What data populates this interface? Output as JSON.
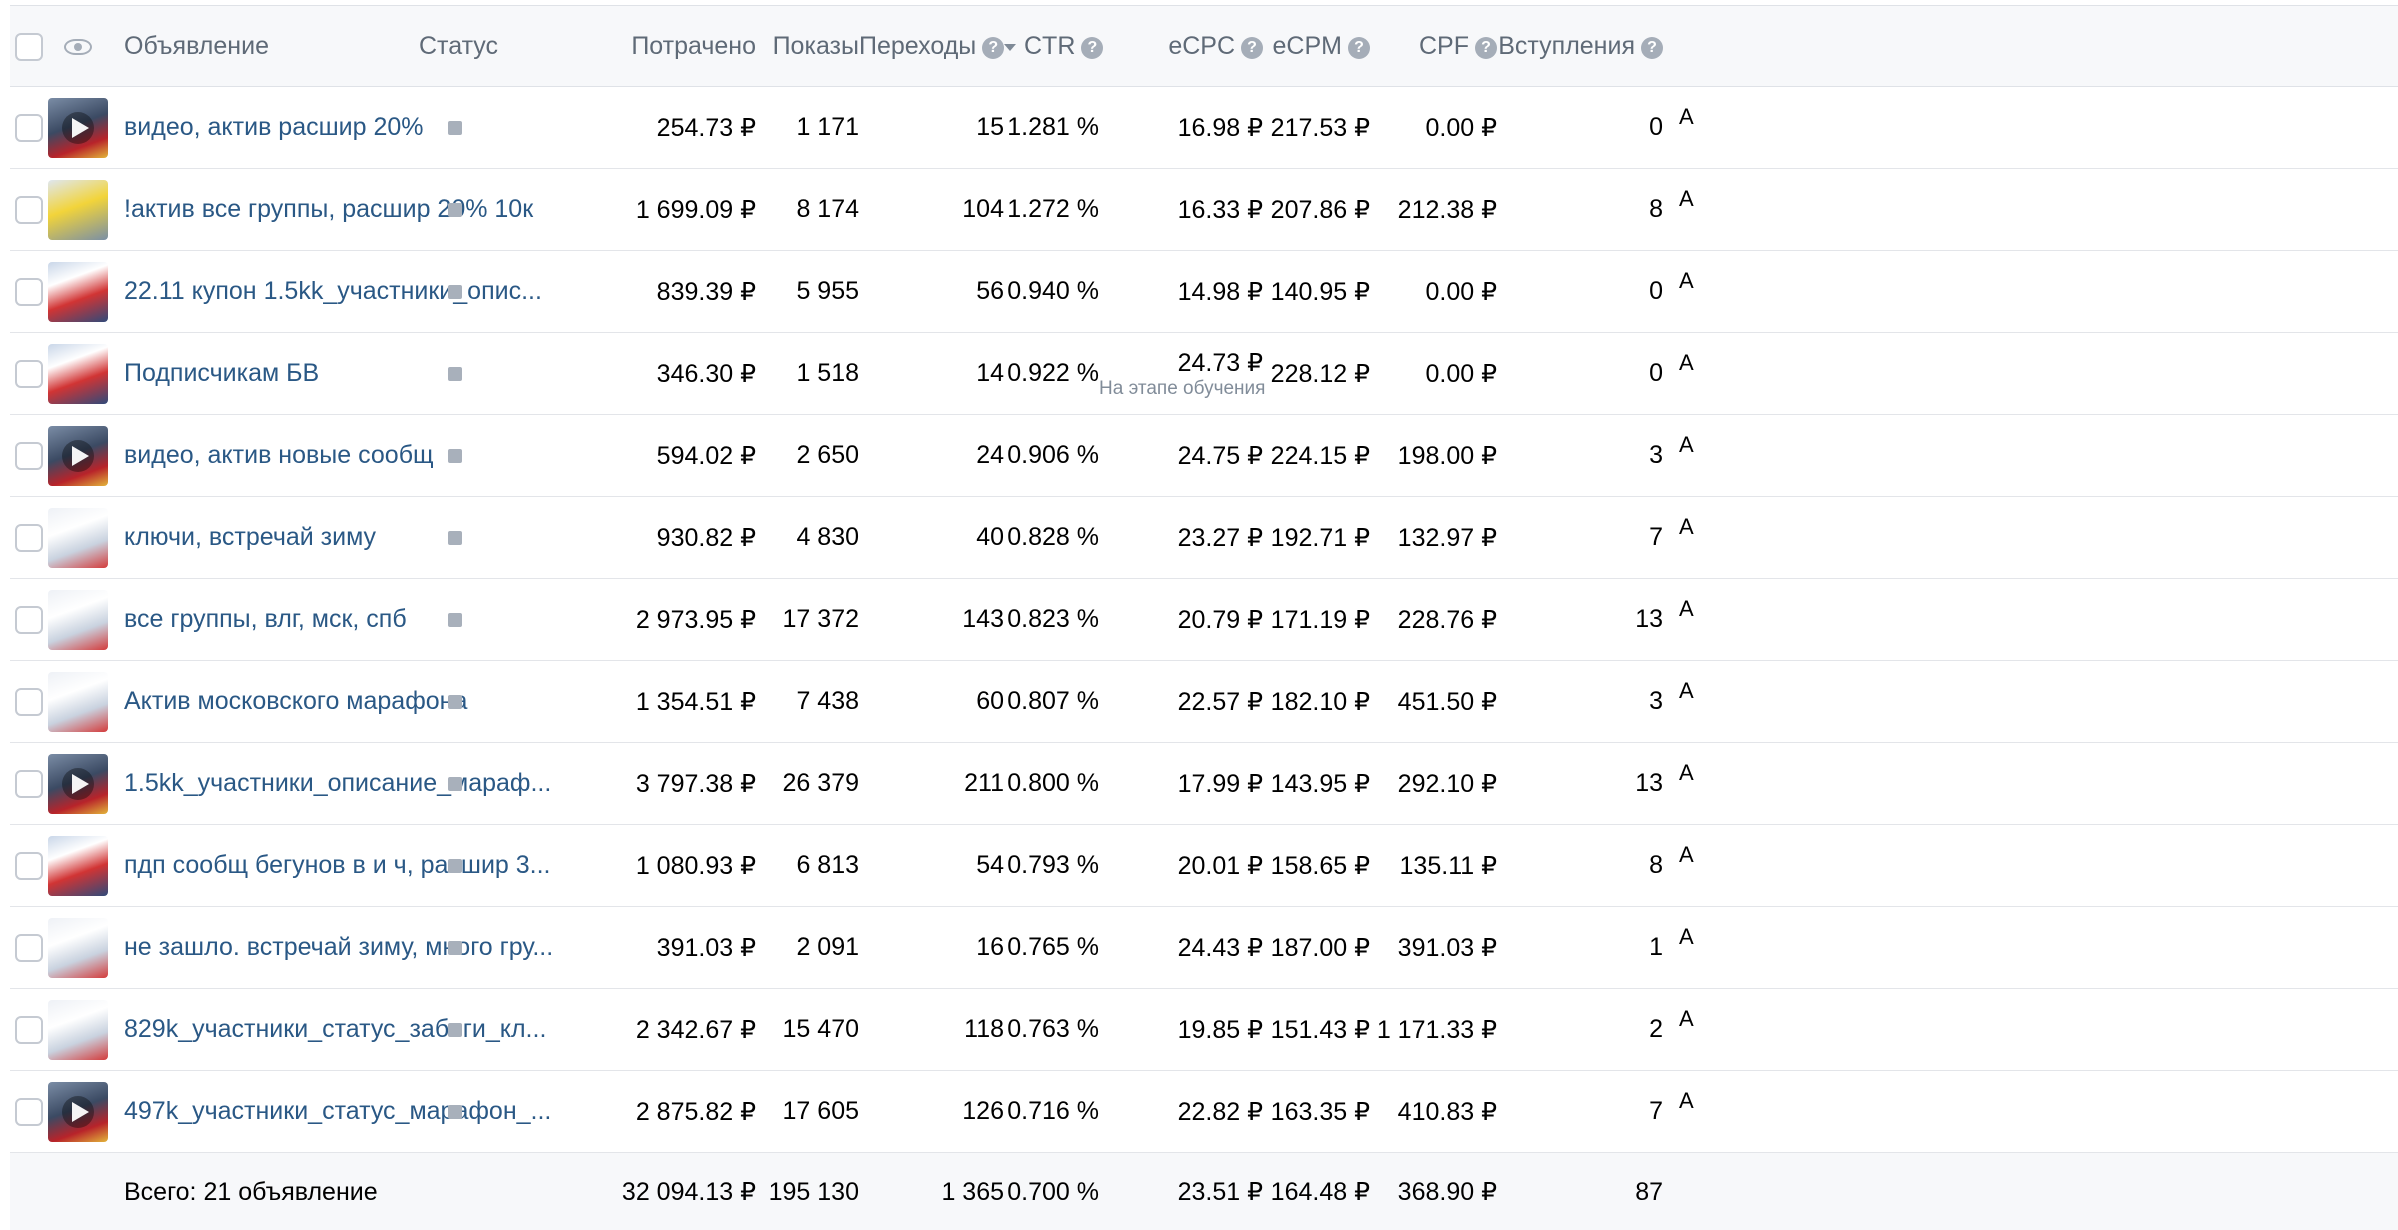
{
  "header": {
    "ad": "Объявление",
    "status": "Статус",
    "spent": "Потрачено",
    "impressions": "Показы",
    "clicks": "Переходы",
    "ctr": "CTR",
    "ecpc": "eCPC",
    "ecpm": "eCPM",
    "cpf": "CPF",
    "joins": "Вступления",
    "help_glyph": "?"
  },
  "colors": {
    "link": "#2a5885",
    "header_bg": "#f7f8fa",
    "status_square": "#a8b0bb"
  },
  "rows": [
    {
      "name": "видео, актив расшир 20%",
      "spent": "254.73 ₽",
      "impressions": "1 171",
      "clicks": "15",
      "ctr": "1.281 %",
      "ecpc": "16.98 ₽",
      "ecpm": "217.53 ₽",
      "cpf": "0.00 ₽",
      "joins": "0",
      "thumb": "video",
      "edge": "A"
    },
    {
      "name": "!актив все группы, расшир 20% 10к",
      "spent": "1 699.09 ₽",
      "impressions": "8 174",
      "clicks": "104",
      "ctr": "1.272 %",
      "ecpc": "16.33 ₽",
      "ecpm": "207.86 ₽",
      "cpf": "212.38 ₽",
      "joins": "8",
      "thumb": "yellow",
      "edge": "A"
    },
    {
      "name": "22.11 купон 1.5kk_участники_опис...",
      "spent": "839.39 ₽",
      "impressions": "5 955",
      "clicks": "56",
      "ctr": "0.940 %",
      "ecpc": "14.98 ₽",
      "ecpm": "140.95 ₽",
      "cpf": "0.00 ₽",
      "joins": "0",
      "thumb": "red",
      "edge": "A"
    },
    {
      "name": "Подписчикам БВ",
      "spent": "346.30 ₽",
      "impressions": "1 518",
      "clicks": "14",
      "ctr": "0.922 %",
      "ecpc": "24.73 ₽",
      "ecpc_note": "На этапе обучения",
      "ecpm": "228.12 ₽",
      "cpf": "0.00 ₽",
      "joins": "0",
      "thumb": "red",
      "edge": "A"
    },
    {
      "name": "видео, актив новые сообщ",
      "spent": "594.02 ₽",
      "impressions": "2 650",
      "clicks": "24",
      "ctr": "0.906 %",
      "ecpc": "24.75 ₽",
      "ecpm": "224.15 ₽",
      "cpf": "198.00 ₽",
      "joins": "3",
      "thumb": "video",
      "edge": "A"
    },
    {
      "name": "ключи, встречай зиму",
      "spent": "930.82 ₽",
      "impressions": "4 830",
      "clicks": "40",
      "ctr": "0.828 %",
      "ecpc": "23.27 ₽",
      "ecpm": "192.71 ₽",
      "cpf": "132.97 ₽",
      "joins": "7",
      "thumb": "white",
      "edge": "A"
    },
    {
      "name": "все группы, влг, мск, спб",
      "spent": "2 973.95 ₽",
      "impressions": "17 372",
      "clicks": "143",
      "ctr": "0.823 %",
      "ecpc": "20.79 ₽",
      "ecpm": "171.19 ₽",
      "cpf": "228.76 ₽",
      "joins": "13",
      "thumb": "white",
      "edge": "A"
    },
    {
      "name": "Актив московского марафона",
      "spent": "1 354.51 ₽",
      "impressions": "7 438",
      "clicks": "60",
      "ctr": "0.807 %",
      "ecpc": "22.57 ₽",
      "ecpm": "182.10 ₽",
      "cpf": "451.50 ₽",
      "joins": "3",
      "thumb": "white",
      "edge": "A"
    },
    {
      "name": "1.5kk_участники_описание_мараф...",
      "spent": "3 797.38 ₽",
      "impressions": "26 379",
      "clicks": "211",
      "ctr": "0.800 %",
      "ecpc": "17.99 ₽",
      "ecpm": "143.95 ₽",
      "cpf": "292.10 ₽",
      "joins": "13",
      "thumb": "video",
      "edge": "A"
    },
    {
      "name": "пдп сообщ бегунов в и ч, расшир 3...",
      "spent": "1 080.93 ₽",
      "impressions": "6 813",
      "clicks": "54",
      "ctr": "0.793 %",
      "ecpc": "20.01 ₽",
      "ecpm": "158.65 ₽",
      "cpf": "135.11 ₽",
      "joins": "8",
      "thumb": "red",
      "edge": "A"
    },
    {
      "name": "не зашло. встречай зиму, много гру...",
      "spent": "391.03 ₽",
      "impressions": "2 091",
      "clicks": "16",
      "ctr": "0.765 %",
      "ecpc": "24.43 ₽",
      "ecpm": "187.00 ₽",
      "cpf": "391.03 ₽",
      "joins": "1",
      "thumb": "white",
      "edge": "A"
    },
    {
      "name": "829k_участники_статус_забеги_кл...",
      "spent": "2 342.67 ₽",
      "impressions": "15 470",
      "clicks": "118",
      "ctr": "0.763 %",
      "ecpc": "19.85 ₽",
      "ecpm": "151.43 ₽",
      "cpf": "1 171.33 ₽",
      "joins": "2",
      "thumb": "white",
      "edge": "A"
    },
    {
      "name": "497k_участники_статус_марафон_...",
      "spent": "2 875.82 ₽",
      "impressions": "17 605",
      "clicks": "126",
      "ctr": "0.716 %",
      "ecpc": "22.82 ₽",
      "ecpm": "163.35 ₽",
      "cpf": "410.83 ₽",
      "joins": "7",
      "thumb": "video",
      "edge": "A"
    }
  ],
  "total": {
    "label": "Всего: 21 объявление",
    "spent": "32 094.13 ₽",
    "impressions": "195 130",
    "clicks": "1 365",
    "ctr": "0.700 %",
    "ecpc": "23.51 ₽",
    "ecpm": "164.48 ₽",
    "cpf": "368.90 ₽",
    "joins": "87"
  }
}
